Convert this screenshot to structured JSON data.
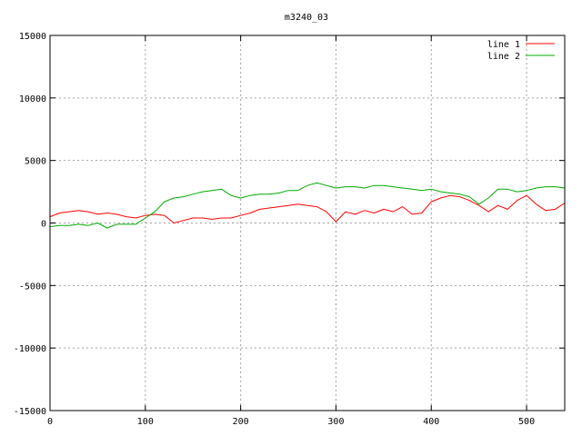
{
  "chart_data": {
    "type": "line",
    "title": "m3240_03",
    "xlabel": "",
    "ylabel": "",
    "xlim": [
      0,
      540
    ],
    "ylim": [
      -15000,
      15000
    ],
    "xticks": [
      0,
      100,
      200,
      300,
      400,
      500
    ],
    "yticks": [
      -15000,
      -10000,
      -5000,
      0,
      5000,
      10000,
      15000
    ],
    "grid": true,
    "legend_position": "top-right",
    "series": [
      {
        "name": "line 1",
        "color": "#ff0000",
        "x": [
          0,
          10,
          20,
          30,
          40,
          50,
          60,
          70,
          80,
          90,
          100,
          110,
          120,
          130,
          140,
          150,
          160,
          170,
          180,
          190,
          200,
          210,
          220,
          230,
          240,
          250,
          260,
          270,
          280,
          290,
          300,
          310,
          320,
          330,
          340,
          350,
          360,
          370,
          380,
          390,
          400,
          410,
          420,
          430,
          440,
          450,
          460,
          470,
          480,
          490,
          500,
          510,
          520,
          530,
          540
        ],
        "y": [
          500,
          800,
          900,
          1000,
          900,
          700,
          800,
          700,
          500,
          400,
          600,
          700,
          600,
          0,
          200,
          400,
          400,
          300,
          400,
          400,
          600,
          800,
          1100,
          1200,
          1300,
          1400,
          1500,
          1400,
          1300,
          900,
          100,
          900,
          700,
          1000,
          800,
          1100,
          900,
          1300,
          700,
          800,
          1700,
          2000,
          2200,
          2100,
          1800,
          1400,
          900,
          1400,
          1100,
          1800,
          2200,
          1500,
          1000,
          1100,
          1600
        ]
      },
      {
        "name": "line 2",
        "color": "#00aa00",
        "x": [
          0,
          10,
          20,
          30,
          40,
          50,
          60,
          70,
          80,
          90,
          100,
          110,
          120,
          130,
          140,
          150,
          160,
          170,
          180,
          190,
          200,
          210,
          220,
          230,
          240,
          250,
          260,
          270,
          280,
          290,
          300,
          310,
          320,
          330,
          340,
          350,
          360,
          370,
          380,
          390,
          400,
          410,
          420,
          430,
          440,
          450,
          460,
          470,
          480,
          490,
          500,
          510,
          520,
          530,
          540
        ],
        "y": [
          -300,
          -200,
          -200,
          -100,
          -200,
          0,
          -400,
          -100,
          -100,
          -100,
          400,
          900,
          1700,
          2000,
          2100,
          2300,
          2500,
          2600,
          2700,
          2200,
          2000,
          2200,
          2300,
          2300,
          2400,
          2600,
          2600,
          3000,
          3200,
          3000,
          2800,
          2900,
          2900,
          2800,
          3000,
          3000,
          2900,
          2800,
          2700,
          2600,
          2700,
          2500,
          2400,
          2300,
          2100,
          1500,
          2000,
          2700,
          2700,
          2500,
          2600,
          2800,
          2900,
          2900,
          2800
        ]
      }
    ]
  }
}
